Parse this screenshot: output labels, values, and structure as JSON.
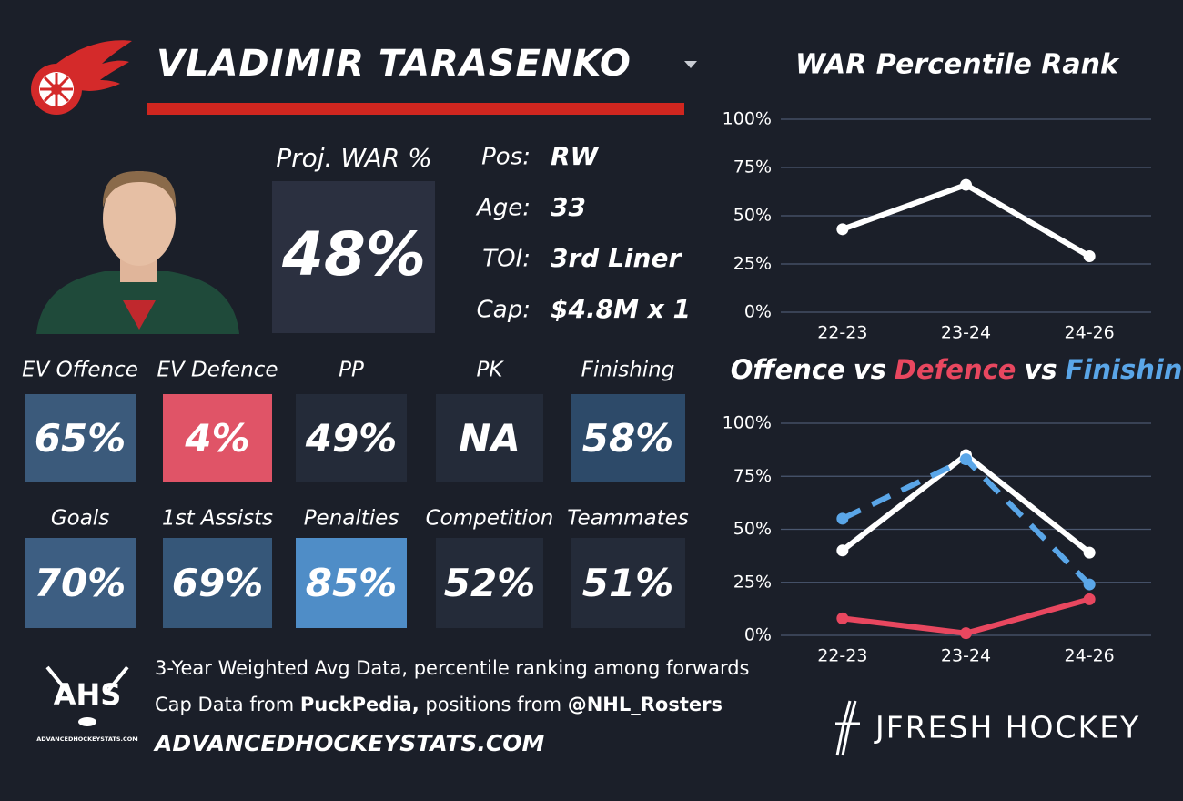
{
  "header": {
    "player_name": "VLADIMIR TARASENKO"
  },
  "proj_war": {
    "label": "Proj. WAR %",
    "value": "48%"
  },
  "bio": [
    {
      "label": "Pos:",
      "value": "RW"
    },
    {
      "label": "Age:",
      "value": "33"
    },
    {
      "label": "TOI:",
      "value": "3rd Liner"
    },
    {
      "label": "Cap:",
      "value": "$4.8M x 1"
    }
  ],
  "tiles": [
    {
      "label": "EV Offence",
      "value": "65%",
      "color": "#3b5a7b"
    },
    {
      "label": "EV Defence",
      "value": "4%",
      "color": "#e05467"
    },
    {
      "label": "PP",
      "value": "49%",
      "color": "#242b39"
    },
    {
      "label": "PK",
      "value": "NA",
      "color": "#242b39"
    },
    {
      "label": "Finishing",
      "value": "58%",
      "color": "#2d4a69"
    },
    {
      "label": "Goals",
      "value": "70%",
      "color": "#3d5e82"
    },
    {
      "label": "1st Assists",
      "value": "69%",
      "color": "#365779"
    },
    {
      "label": "Penalties",
      "value": "85%",
      "color": "#4f8dc7"
    },
    {
      "label": "Competition",
      "value": "52%",
      "color": "#242b39"
    },
    {
      "label": "Teammates",
      "value": "51%",
      "color": "#242b39"
    }
  ],
  "footer": {
    "logo_title": "AHS",
    "logo_subtitle": "ADVANCEDHOCKEYSTATS.COM",
    "line1": "3-Year Weighted Avg Data, percentile ranking among forwards",
    "line2": [
      {
        "text": "Cap Data from ",
        "bold": false
      },
      {
        "text": "PuckPedia,",
        "bold": true
      },
      {
        "text": " positions from ",
        "bold": false
      },
      {
        "text": "@NHL_Rosters",
        "bold": true
      }
    ],
    "website": "ADVANCEDHOCKEYSTATS.COM",
    "brand": "JFRESH HOCKEY"
  },
  "chart_data": [
    {
      "type": "line",
      "title": "WAR Percentile Rank",
      "categories": [
        "22-23",
        "23-24",
        "24-26"
      ],
      "series": [
        {
          "color": "#ffffff",
          "values": [
            43,
            66,
            29
          ]
        }
      ],
      "ylim": [
        0,
        100
      ],
      "yticks": [
        {
          "value": 0,
          "label": "0%"
        },
        {
          "value": 25,
          "label": "25%"
        },
        {
          "value": 50,
          "label": "50%"
        },
        {
          "value": 75,
          "label": "75%"
        },
        {
          "value": 100,
          "label": "100%"
        }
      ],
      "grid": true
    },
    {
      "type": "line",
      "title_separator": "vs",
      "categories": [
        "22-23",
        "23-24",
        "24-26"
      ],
      "series": [
        {
          "name": "Offence",
          "color": "#ffffff",
          "values": [
            40,
            85,
            39
          ]
        },
        {
          "name": "Defence",
          "color": "#e8475f",
          "values": [
            8,
            1,
            17
          ]
        },
        {
          "name": "Finishing",
          "color": "#5aa6e8",
          "dash": true,
          "values": [
            55,
            83,
            24
          ]
        }
      ],
      "ylim": [
        0,
        100
      ],
      "yticks": [
        {
          "value": 0,
          "label": "0%"
        },
        {
          "value": 25,
          "label": "25%"
        },
        {
          "value": 50,
          "label": "50%"
        },
        {
          "value": 75,
          "label": "75%"
        },
        {
          "value": 100,
          "label": "100%"
        }
      ],
      "grid": true
    }
  ]
}
